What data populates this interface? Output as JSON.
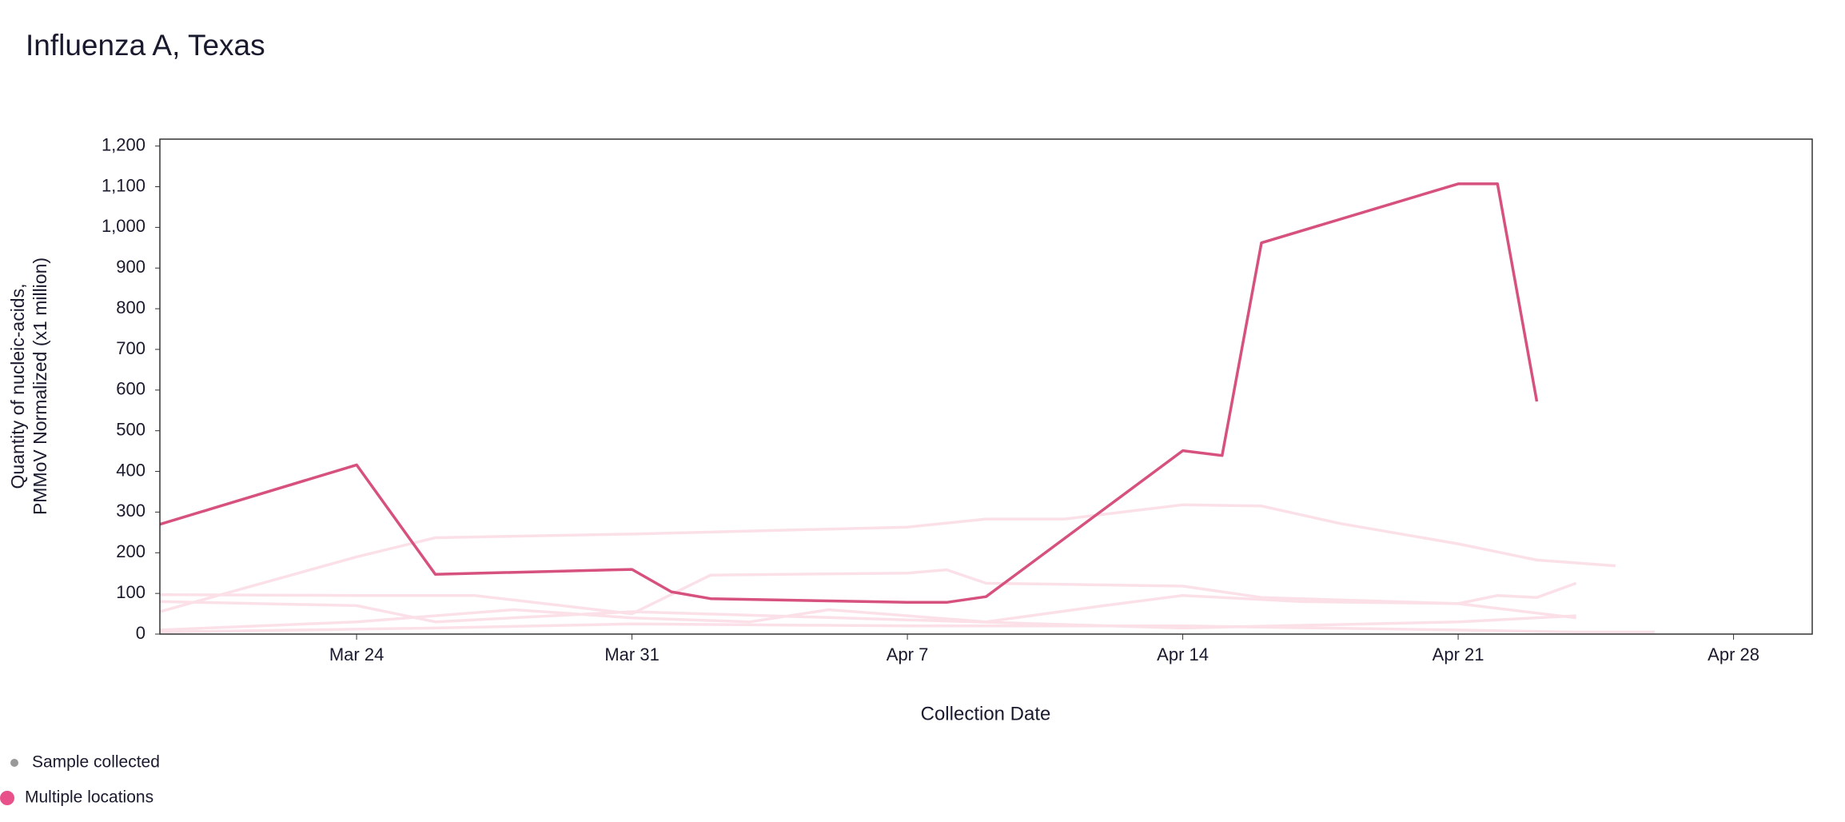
{
  "chart_data": {
    "type": "line",
    "title": "Influenza A, Texas",
    "x_label": "Collection Date",
    "y_label": [
      "Quantity of nucleic-acids,",
      "PMMoV Normalized (x1 million)"
    ],
    "xlim": [
      "Mar 19",
      "Apr 30"
    ],
    "xticks": [
      "Mar 24",
      "Mar 31",
      "Apr 7",
      "Apr 14",
      "Apr 21",
      "Apr 28"
    ],
    "ylim": [
      0,
      1217
    ],
    "yticks": [
      0,
      100,
      200,
      300,
      400,
      500,
      600,
      700,
      800,
      900,
      {
        "value": 1000,
        "label": "1,000"
      },
      {
        "value": 1100,
        "label": "1,100"
      },
      {
        "value": 1200,
        "label": "1,200"
      }
    ],
    "grid": false,
    "legend": [
      {
        "label": "Sample collected",
        "color": "#999999"
      },
      {
        "label": "Multiple locations",
        "color": "#e8518a"
      }
    ],
    "series": [
      {
        "color": "#fbe0e8",
        "x": [
          "Mar 19",
          "Mar 24",
          "Mar 26",
          "Mar 31",
          "Apr 7",
          "Apr 9",
          "Apr 11",
          "Apr 14",
          "Apr 16",
          "Apr 18",
          "Apr 21",
          "Apr 23",
          "Apr 25"
        ],
        "values": [
          55,
          190,
          237,
          246,
          263,
          283,
          283,
          318,
          315,
          272,
          222,
          182,
          168
        ]
      },
      {
        "color": "#fbe0e8",
        "x": [
          "Mar 19",
          "Mar 24",
          "Mar 27",
          "Mar 31",
          "Apr 2",
          "Apr 7",
          "Apr 8",
          "Apr 9",
          "Apr 14",
          "Apr 16",
          "Apr 21",
          "Apr 22",
          "Apr 23",
          "Apr 24"
        ],
        "values": [
          97,
          95,
          95,
          50,
          145,
          150,
          158,
          125,
          118,
          90,
          75,
          95,
          90,
          125
        ]
      },
      {
        "color": "#fbe0e8",
        "x": [
          "Mar 19",
          "Mar 24",
          "Mar 26",
          "Mar 31",
          "Apr 7",
          "Apr 14",
          "Apr 21",
          "Apr 24"
        ],
        "values": [
          80,
          70,
          30,
          55,
          35,
          15,
          30,
          45
        ]
      },
      {
        "color": "#fbe0e8",
        "x": [
          "Mar 19",
          "Mar 24",
          "Mar 28",
          "Mar 31",
          "Apr 3",
          "Apr 5",
          "Apr 9",
          "Apr 12",
          "Apr 14",
          "Apr 17",
          "Apr 21",
          "Apr 24"
        ],
        "values": [
          10,
          30,
          60,
          40,
          30,
          60,
          30,
          70,
          95,
          80,
          75,
          40
        ]
      },
      {
        "color": "#fbe0e8",
        "x": [
          "Mar 19",
          "Mar 26",
          "Mar 31",
          "Apr 7",
          "Apr 14",
          "Apr 21",
          "Apr 24",
          "Apr 26"
        ],
        "values": [
          5,
          15,
          25,
          20,
          20,
          10,
          5,
          5
        ]
      },
      {
        "color": "#d6517d",
        "x": [
          "Mar 19",
          "Mar 24",
          "Mar 26",
          "Mar 31",
          "Apr 1",
          "Apr 2",
          "Apr 7",
          "Apr 8",
          "Apr 9",
          "Apr 14",
          "Apr 15",
          "Apr 16",
          "Apr 21",
          "Apr 22",
          "Apr 23"
        ],
        "values": [
          270,
          416,
          147,
          159,
          104,
          87,
          78,
          78,
          92,
          451,
          439,
          962,
          1107,
          1107,
          572
        ]
      }
    ]
  }
}
